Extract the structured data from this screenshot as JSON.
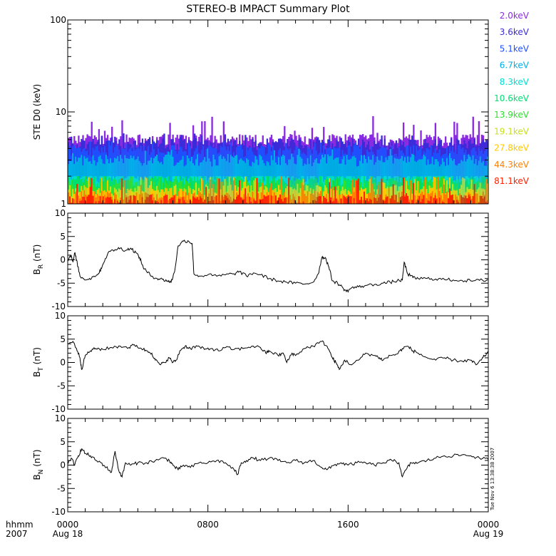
{
  "title": "STEREO-B IMPACT Summary Plot",
  "timestamp": "Tue Nov  6 13:38:38 2007",
  "time_axis": {
    "label_top": "hhmm",
    "label_bottom": "2007",
    "ticks": [
      {
        "hour": 0,
        "hhmm": "0000",
        "date": "Aug 18"
      },
      {
        "hour": 8,
        "hhmm": "0800",
        "date": ""
      },
      {
        "hour": 16,
        "hhmm": "1600",
        "date": ""
      },
      {
        "hour": 24,
        "hhmm": "0000",
        "date": "Aug 19"
      }
    ]
  },
  "chart_data": [
    {
      "type": "bar",
      "ylabel": "STE D0 (keV)",
      "yscale": "log",
      "ylim": [
        1,
        100
      ],
      "yticks": [
        {
          "v": 1,
          "label": "1"
        },
        {
          "v": 10,
          "label": "10"
        },
        {
          "v": 100,
          "label": "100"
        }
      ],
      "xlim": [
        0,
        24
      ],
      "legend_position": "right",
      "series": [
        {
          "name": "2.0keV",
          "color": "#8a2be2",
          "typical": 5,
          "spike_max": 9
        },
        {
          "name": "3.6keV",
          "color": "#3a2bd8",
          "typical": 4.5,
          "spike_max": 6
        },
        {
          "name": "5.1keV",
          "color": "#1f4fff",
          "typical": 3.8,
          "spike_max": 5
        },
        {
          "name": "6.7keV",
          "color": "#00b0e8",
          "typical": 3,
          "spike_max": 4
        },
        {
          "name": "8.3keV",
          "color": "#00e0d0",
          "typical": 2,
          "spike_max": 2
        },
        {
          "name": "10.6keV",
          "color": "#00e070",
          "typical": 1.8,
          "spike_max": 2
        },
        {
          "name": "13.9keV",
          "color": "#30e030",
          "typical": 1.6,
          "spike_max": 2
        },
        {
          "name": "19.1keV",
          "color": "#c8e020",
          "typical": 1.4,
          "spike_max": 2
        },
        {
          "name": "27.8keV",
          "color": "#ffc800",
          "typical": 1.3,
          "spike_max": 2
        },
        {
          "name": "44.3keV",
          "color": "#ff8000",
          "typical": 1.2,
          "spike_max": 2
        },
        {
          "name": "81.1keV",
          "color": "#ff2000",
          "typical": 1.1,
          "spike_max": 2
        }
      ]
    },
    {
      "type": "line",
      "ylabel_main": "B",
      "ylabel_sub": "R",
      "ylabel_unit": " (nT)",
      "ylim": [
        -10,
        10
      ],
      "yticks": [
        -10,
        -5,
        0,
        5,
        10
      ],
      "xlim": [
        0,
        24
      ],
      "series": [
        {
          "color": "#000000",
          "points": [
            [
              0,
              0
            ],
            [
              0.2,
              1.0
            ],
            [
              0.3,
              -0.5
            ],
            [
              0.4,
              1.5
            ],
            [
              0.5,
              0
            ],
            [
              0.7,
              -3.5
            ],
            [
              0.9,
              -4.0
            ],
            [
              1.2,
              -4.2
            ],
            [
              1.5,
              -3.5
            ],
            [
              1.8,
              -2.8
            ],
            [
              2.0,
              -1.0
            ],
            [
              2.3,
              1.5
            ],
            [
              2.7,
              2.2
            ],
            [
              3.0,
              2.5
            ],
            [
              3.3,
              2.0
            ],
            [
              3.6,
              2.5
            ],
            [
              3.9,
              1.5
            ],
            [
              4.1,
              0.5
            ],
            [
              4.3,
              -1.5
            ],
            [
              4.5,
              -2.5
            ],
            [
              4.8,
              -3.5
            ],
            [
              5.1,
              -4.0
            ],
            [
              5.4,
              -4.2
            ],
            [
              5.7,
              -4.5
            ],
            [
              5.9,
              -4.8
            ],
            [
              6.1,
              -2.5
            ],
            [
              6.3,
              3.0
            ],
            [
              6.6,
              4.0
            ],
            [
              6.9,
              4.0
            ],
            [
              7.1,
              3.5
            ],
            [
              7.2,
              -3.0
            ],
            [
              7.5,
              -3.5
            ],
            [
              8.0,
              -3.2
            ],
            [
              8.5,
              -3.5
            ],
            [
              9.0,
              -3.2
            ],
            [
              9.5,
              -3.0
            ],
            [
              9.8,
              -2.5
            ],
            [
              10.2,
              -3.5
            ],
            [
              10.6,
              -2.8
            ],
            [
              11.0,
              -3.2
            ],
            [
              11.5,
              -4.0
            ],
            [
              12.0,
              -4.5
            ],
            [
              12.5,
              -4.8
            ],
            [
              13.0,
              -5.0
            ],
            [
              13.5,
              -5.2
            ],
            [
              14.0,
              -4.8
            ],
            [
              14.3,
              -3.0
            ],
            [
              14.5,
              0.5
            ],
            [
              14.7,
              0.5
            ],
            [
              14.9,
              -1.5
            ],
            [
              15.1,
              -4.5
            ],
            [
              15.4,
              -5.0
            ],
            [
              15.7,
              -6.0
            ],
            [
              15.9,
              -6.8
            ],
            [
              16.2,
              -6.0
            ],
            [
              16.6,
              -5.8
            ],
            [
              17.0,
              -5.5
            ],
            [
              17.5,
              -5.3
            ],
            [
              18.0,
              -5.0
            ],
            [
              18.4,
              -4.8
            ],
            [
              18.8,
              -4.5
            ],
            [
              19.1,
              -4.3
            ],
            [
              19.2,
              -0.5
            ],
            [
              19.4,
              -3.0
            ],
            [
              19.7,
              -3.8
            ],
            [
              20.0,
              -4.0
            ],
            [
              20.5,
              -4.0
            ],
            [
              21.0,
              -4.1
            ],
            [
              21.5,
              -4.2
            ],
            [
              22.0,
              -4.3
            ],
            [
              22.5,
              -4.4
            ],
            [
              23.0,
              -4.5
            ],
            [
              23.5,
              -4.4
            ],
            [
              24.0,
              -4.3
            ]
          ]
        }
      ]
    },
    {
      "type": "line",
      "ylabel_main": "B",
      "ylabel_sub": "T",
      "ylabel_unit": " (nT)",
      "ylim": [
        -10,
        10
      ],
      "yticks": [
        -10,
        -5,
        0,
        5,
        10
      ],
      "xlim": [
        0,
        24
      ],
      "series": [
        {
          "color": "#000000",
          "points": [
            [
              0,
              4.0
            ],
            [
              0.3,
              4.5
            ],
            [
              0.5,
              3.0
            ],
            [
              0.7,
              1.0
            ],
            [
              0.8,
              -1.5
            ],
            [
              1.0,
              1.5
            ],
            [
              1.3,
              2.5
            ],
            [
              1.6,
              3.0
            ],
            [
              2.0,
              2.8
            ],
            [
              2.5,
              3.2
            ],
            [
              3.0,
              3.5
            ],
            [
              3.5,
              3.2
            ],
            [
              3.8,
              3.8
            ],
            [
              4.2,
              3.0
            ],
            [
              4.5,
              2.5
            ],
            [
              4.8,
              2.0
            ],
            [
              5.0,
              0.5
            ],
            [
              5.3,
              -0.5
            ],
            [
              5.5,
              0.0
            ],
            [
              5.8,
              1.0
            ],
            [
              6.0,
              0.0
            ],
            [
              6.2,
              0.5
            ],
            [
              6.4,
              2.5
            ],
            [
              6.7,
              3.5
            ],
            [
              7.0,
              3.0
            ],
            [
              7.4,
              3.5
            ],
            [
              7.8,
              2.8
            ],
            [
              8.2,
              3.0
            ],
            [
              8.6,
              2.5
            ],
            [
              9.0,
              3.2
            ],
            [
              9.5,
              2.8
            ],
            [
              10.0,
              3.0
            ],
            [
              10.5,
              3.5
            ],
            [
              11.0,
              3.2
            ],
            [
              11.3,
              2.0
            ],
            [
              11.5,
              2.5
            ],
            [
              12.0,
              1.5
            ],
            [
              12.3,
              2.0
            ],
            [
              12.5,
              0.0
            ],
            [
              12.8,
              2.0
            ],
            [
              13.0,
              1.5
            ],
            [
              13.5,
              3.0
            ],
            [
              14.0,
              3.5
            ],
            [
              14.5,
              4.5
            ],
            [
              14.8,
              3.5
            ],
            [
              15.1,
              1.0
            ],
            [
              15.3,
              0.0
            ],
            [
              15.5,
              -1.5
            ],
            [
              15.8,
              0.5
            ],
            [
              16.2,
              -0.5
            ],
            [
              16.6,
              0.5
            ],
            [
              17.0,
              2.0
            ],
            [
              17.5,
              1.5
            ],
            [
              17.8,
              1.0
            ],
            [
              18.0,
              0.5
            ],
            [
              18.4,
              1.5
            ],
            [
              18.8,
              1.8
            ],
            [
              19.1,
              3.0
            ],
            [
              19.4,
              3.5
            ],
            [
              19.7,
              2.5
            ],
            [
              20.0,
              2.0
            ],
            [
              20.5,
              1.0
            ],
            [
              21.0,
              0.5
            ],
            [
              21.5,
              1.0
            ],
            [
              22.0,
              0.5
            ],
            [
              22.5,
              0.3
            ],
            [
              23.0,
              0.5
            ],
            [
              23.3,
              -0.5
            ],
            [
              23.6,
              0.5
            ],
            [
              23.8,
              1.5
            ],
            [
              24.0,
              2.0
            ]
          ]
        }
      ]
    },
    {
      "type": "line",
      "ylabel_main": "B",
      "ylabel_sub": "N",
      "ylabel_unit": " (nT)",
      "ylim": [
        -10,
        10
      ],
      "yticks": [
        -10,
        -5,
        0,
        5,
        10
      ],
      "xlim": [
        0,
        24
      ],
      "series": [
        {
          "color": "#000000",
          "points": [
            [
              0,
              0.5
            ],
            [
              0.2,
              1.5
            ],
            [
              0.4,
              0.0
            ],
            [
              0.6,
              2.0
            ],
            [
              0.8,
              3.5
            ],
            [
              1.0,
              2.5
            ],
            [
              1.3,
              2.0
            ],
            [
              1.6,
              1.0
            ],
            [
              1.9,
              0.5
            ],
            [
              2.2,
              -0.5
            ],
            [
              2.5,
              -1.5
            ],
            [
              2.7,
              3.0
            ],
            [
              2.9,
              -1.0
            ],
            [
              3.1,
              -2.5
            ],
            [
              3.3,
              0.5
            ],
            [
              3.6,
              0.0
            ],
            [
              4.0,
              0.5
            ],
            [
              4.5,
              0.5
            ],
            [
              5.0,
              1.0
            ],
            [
              5.5,
              1.5
            ],
            [
              5.8,
              1.0
            ],
            [
              6.0,
              0.0
            ],
            [
              6.3,
              -1.0
            ],
            [
              6.6,
              0.0
            ],
            [
              7.0,
              -0.5
            ],
            [
              7.5,
              0.5
            ],
            [
              8.0,
              0.5
            ],
            [
              8.5,
              1.0
            ],
            [
              9.0,
              0.5
            ],
            [
              9.5,
              -1.0
            ],
            [
              9.7,
              -2.0
            ],
            [
              9.9,
              0.5
            ],
            [
              10.2,
              1.0
            ],
            [
              10.6,
              1.5
            ],
            [
              11.0,
              1.0
            ],
            [
              11.5,
              1.5
            ],
            [
              12.0,
              1.0
            ],
            [
              12.5,
              0.5
            ],
            [
              13.0,
              1.0
            ],
            [
              13.5,
              0.5
            ],
            [
              14.0,
              1.0
            ],
            [
              14.5,
              -0.5
            ],
            [
              14.8,
              -1.0
            ],
            [
              15.2,
              0.0
            ],
            [
              15.6,
              0.5
            ],
            [
              16.0,
              0.0
            ],
            [
              16.5,
              0.5
            ],
            [
              17.0,
              0.5
            ],
            [
              17.5,
              0.0
            ],
            [
              18.0,
              0.5
            ],
            [
              18.5,
              1.0
            ],
            [
              18.9,
              0.5
            ],
            [
              19.1,
              -2.5
            ],
            [
              19.3,
              -1.0
            ],
            [
              19.6,
              0.5
            ],
            [
              20.0,
              0.5
            ],
            [
              20.5,
              1.0
            ],
            [
              21.0,
              1.5
            ],
            [
              21.5,
              2.0
            ],
            [
              22.0,
              2.0
            ],
            [
              22.5,
              2.2
            ],
            [
              23.0,
              2.0
            ],
            [
              23.5,
              1.5
            ],
            [
              24.0,
              1.2
            ]
          ]
        }
      ]
    }
  ]
}
